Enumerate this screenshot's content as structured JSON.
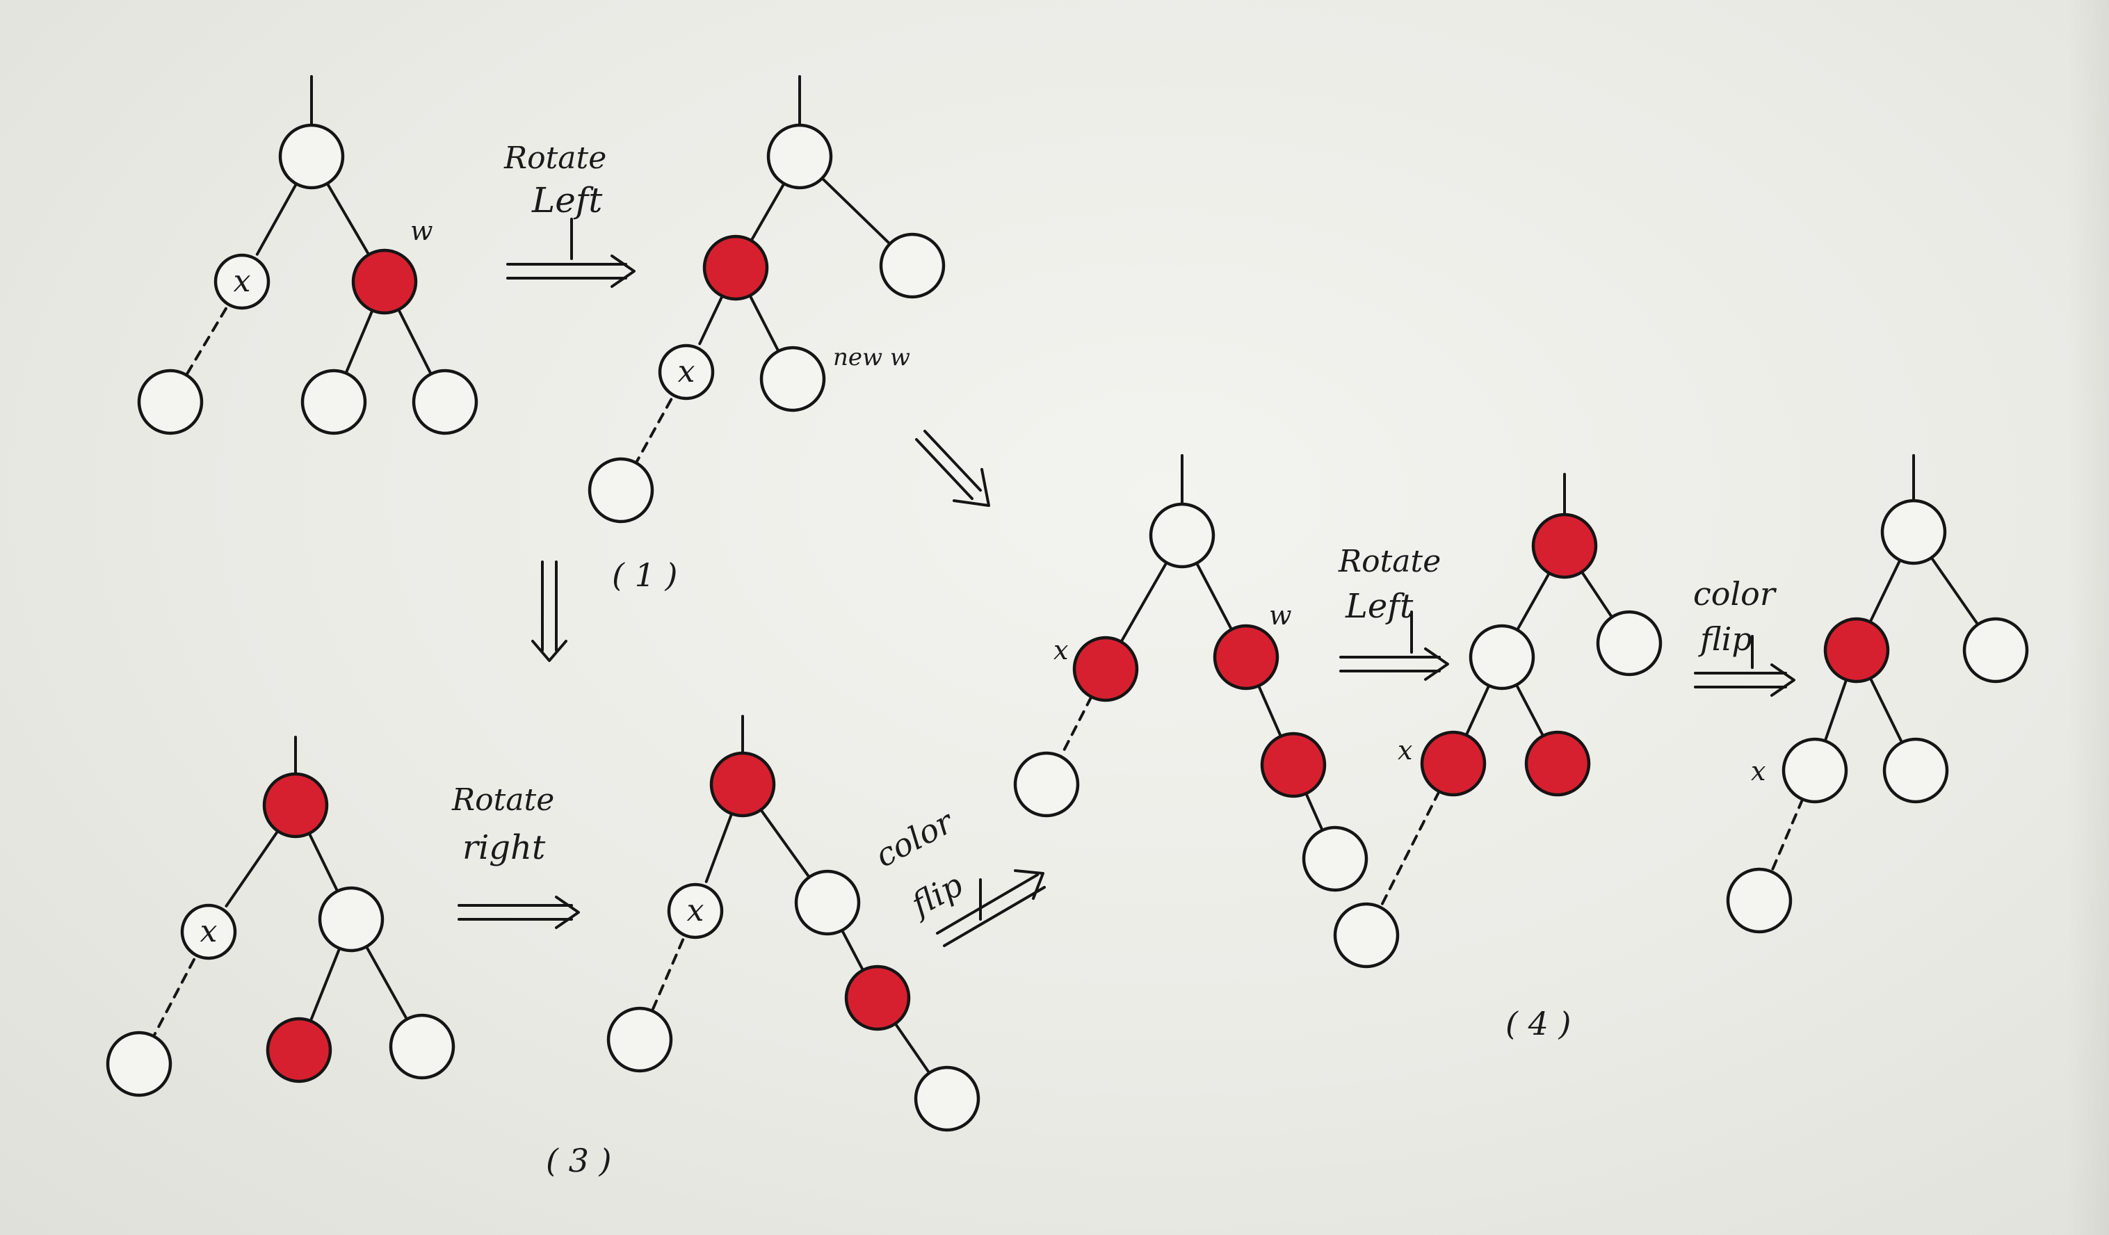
{
  "colors": {
    "ink": "#151515",
    "red": "#d7202f",
    "hollow": "#f4f4f0"
  },
  "labels": {
    "x": "x",
    "w": "w",
    "new_w": "new w",
    "rotate": "Rotate",
    "left": "Left",
    "right": "right",
    "color": "color",
    "flip": "flip",
    "step_1": "( 1 )",
    "step_3": "( 3 )",
    "step_4": "( 4 )"
  },
  "trees": [
    {
      "id": "t1",
      "nodes": [
        {
          "id": "a",
          "color": "black"
        },
        {
          "id": "x",
          "color": "black",
          "label": "x"
        },
        {
          "id": "w",
          "color": "red"
        },
        {
          "id": "xc",
          "color": "black"
        },
        {
          "id": "wl",
          "color": "black"
        },
        {
          "id": "wr",
          "color": "black"
        }
      ],
      "edges": [
        [
          "a",
          "x"
        ],
        [
          "a",
          "w"
        ],
        [
          "x",
          "xc",
          "dashed"
        ],
        [
          "w",
          "wl"
        ],
        [
          "w",
          "wr"
        ]
      ],
      "annotations": [
        {
          "node": "w",
          "text": "w"
        }
      ]
    },
    {
      "id": "t2",
      "nodes": [
        {
          "id": "a",
          "color": "black"
        },
        {
          "id": "r",
          "color": "red"
        },
        {
          "id": "ar",
          "color": "black"
        },
        {
          "id": "x",
          "color": "black",
          "label": "x"
        },
        {
          "id": "nw",
          "color": "black"
        },
        {
          "id": "xc",
          "color": "black"
        }
      ],
      "edges": [
        [
          "a",
          "r"
        ],
        [
          "a",
          "ar"
        ],
        [
          "r",
          "x"
        ],
        [
          "r",
          "nw"
        ],
        [
          "x",
          "xc",
          "dashed"
        ]
      ],
      "annotations": [
        {
          "node": "nw",
          "text": "new w"
        }
      ]
    },
    {
      "id": "t3",
      "nodes": [
        {
          "id": "r",
          "color": "red"
        },
        {
          "id": "x",
          "color": "black",
          "label": "x"
        },
        {
          "id": "b",
          "color": "black"
        },
        {
          "id": "xc",
          "color": "black"
        },
        {
          "id": "bl",
          "color": "red"
        },
        {
          "id": "br",
          "color": "black"
        }
      ],
      "edges": [
        [
          "r",
          "x"
        ],
        [
          "r",
          "b"
        ],
        [
          "x",
          "xc",
          "dashed"
        ],
        [
          "b",
          "bl"
        ],
        [
          "b",
          "br"
        ]
      ]
    },
    {
      "id": "t4",
      "nodes": [
        {
          "id": "r",
          "color": "red"
        },
        {
          "id": "x",
          "color": "black",
          "label": "x"
        },
        {
          "id": "b",
          "color": "black"
        },
        {
          "id": "xc",
          "color": "black"
        },
        {
          "id": "c",
          "color": "red"
        },
        {
          "id": "d",
          "color": "black"
        }
      ],
      "edges": [
        [
          "r",
          "x"
        ],
        [
          "r",
          "b"
        ],
        [
          "x",
          "xc",
          "dashed"
        ],
        [
          "b",
          "c"
        ],
        [
          "c",
          "d"
        ]
      ]
    },
    {
      "id": "t5",
      "nodes": [
        {
          "id": "a",
          "color": "black"
        },
        {
          "id": "x",
          "color": "red"
        },
        {
          "id": "w",
          "color": "red"
        },
        {
          "id": "xc",
          "color": "black"
        },
        {
          "id": "c",
          "color": "red"
        },
        {
          "id": "d",
          "color": "black"
        }
      ],
      "edges": [
        [
          "a",
          "x"
        ],
        [
          "a",
          "w"
        ],
        [
          "x",
          "xc",
          "dashed"
        ],
        [
          "w",
          "c"
        ],
        [
          "c",
          "d"
        ]
      ],
      "annotations": [
        {
          "node": "x",
          "text": "x"
        },
        {
          "node": "w",
          "text": "w"
        }
      ]
    },
    {
      "id": "t6",
      "nodes": [
        {
          "id": "r",
          "color": "red"
        },
        {
          "id": "m",
          "color": "black"
        },
        {
          "id": "rr",
          "color": "black"
        },
        {
          "id": "x",
          "color": "red"
        },
        {
          "id": "c",
          "color": "red"
        },
        {
          "id": "xc",
          "color": "black"
        }
      ],
      "edges": [
        [
          "r",
          "m"
        ],
        [
          "r",
          "rr"
        ],
        [
          "m",
          "x"
        ],
        [
          "m",
          "c"
        ],
        [
          "x",
          "xc",
          "dashed"
        ]
      ],
      "annotations": [
        {
          "node": "x",
          "text": "x"
        }
      ]
    },
    {
      "id": "t7",
      "nodes": [
        {
          "id": "r",
          "color": "black"
        },
        {
          "id": "m",
          "color": "red"
        },
        {
          "id": "rr",
          "color": "black"
        },
        {
          "id": "x",
          "color": "black"
        },
        {
          "id": "c",
          "color": "black"
        },
        {
          "id": "xc",
          "color": "black"
        }
      ],
      "edges": [
        [
          "r",
          "m"
        ],
        [
          "r",
          "rr"
        ],
        [
          "m",
          "x"
        ],
        [
          "m",
          "c"
        ],
        [
          "x",
          "xc",
          "dashed"
        ]
      ],
      "annotations": [
        {
          "node": "x",
          "text": "x"
        }
      ]
    }
  ],
  "transitions": [
    {
      "from": "t1",
      "to": "t2",
      "text": [
        "Rotate",
        "Left"
      ]
    },
    {
      "from": "t2",
      "to": "t3",
      "text": []
    },
    {
      "from": "t2",
      "to": "t5",
      "text": []
    },
    {
      "from": "t3",
      "to": "t4",
      "text": [
        "Rotate",
        "right"
      ]
    },
    {
      "from": "t4",
      "to": "t5",
      "text": [
        "color",
        "flip"
      ]
    },
    {
      "from": "t5",
      "to": "t6",
      "text": [
        "Rotate",
        "Left"
      ]
    },
    {
      "from": "t6",
      "to": "t7",
      "text": [
        "color",
        "flip"
      ]
    }
  ]
}
